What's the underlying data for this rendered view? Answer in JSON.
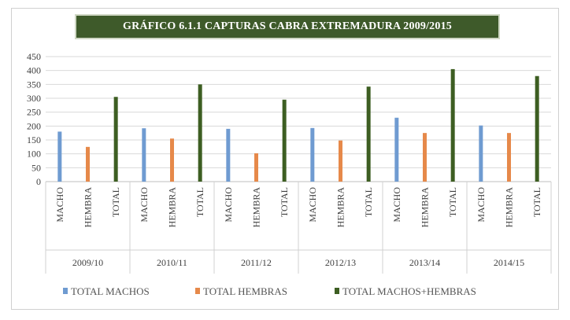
{
  "chart_data": {
    "type": "bar",
    "title": "GRÁFICO 6.1.1 CAPTURAS CABRA EXTREMADURA 2009/2015",
    "xlabel": "",
    "ylabel": "",
    "ylim": [
      0,
      450
    ],
    "yticks": [
      0,
      50,
      100,
      150,
      200,
      250,
      300,
      350,
      400,
      450
    ],
    "grid": true,
    "legend_position": "bottom",
    "groups": [
      "2009/10",
      "2010/11",
      "2011/12",
      "2012/13",
      "2013/14",
      "2014/15"
    ],
    "sub_categories": [
      "MACHO",
      "HEMBRA",
      "TOTAL"
    ],
    "series": [
      {
        "name": "TOTAL MACHOS",
        "color": "#6f9bd1",
        "position": 0,
        "values": [
          180,
          192,
          190,
          193,
          230,
          202
        ]
      },
      {
        "name": "TOTAL HEMBRAS",
        "color": "#e6894a",
        "position": 1,
        "values": [
          125,
          155,
          102,
          148,
          175,
          175
        ]
      },
      {
        "name": "TOTAL MACHOS+HEMBRAS",
        "color": "#3d5e22",
        "position": 2,
        "values": [
          305,
          350,
          295,
          342,
          405,
          380
        ]
      }
    ]
  }
}
